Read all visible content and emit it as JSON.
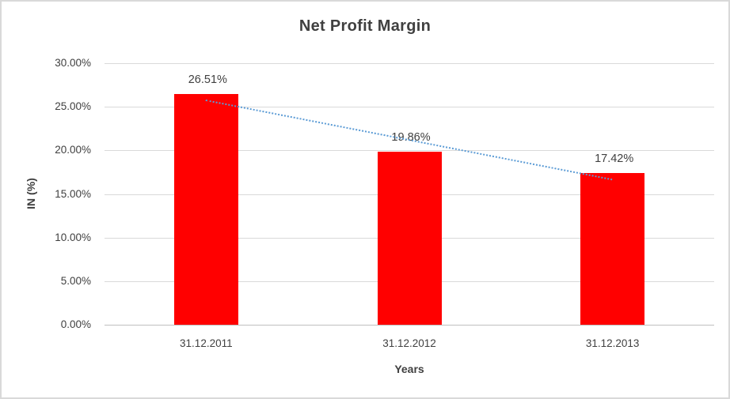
{
  "chart_data": {
    "type": "bar",
    "title": "Net Profit Margin",
    "xlabel": "Years",
    "ylabel": "IN (%)",
    "categories": [
      "31.12.2011",
      "31.12.2012",
      "31.12.2013"
    ],
    "values": [
      26.51,
      19.86,
      17.42
    ],
    "data_labels": [
      "26.51%",
      "19.86%",
      "17.42%"
    ],
    "ylim": [
      0,
      30
    ],
    "ytick_values": [
      0,
      5,
      10,
      15,
      20,
      25,
      30
    ],
    "ytick_labels": [
      "0.00%",
      "5.00%",
      "10.00%",
      "15.00%",
      "20.00%",
      "25.00%",
      "30.00%"
    ],
    "grid": true,
    "legend": "none",
    "trendline": {
      "type": "linear",
      "style": "dotted",
      "color": "#5B9BD5"
    }
  },
  "colors": {
    "bar": "#FF0000",
    "trendline": "#5B9BD5",
    "gridline": "#D9D9D9",
    "axis_line": "#BFBFBF",
    "text": "#404040",
    "chart_border": "#D9D9D9",
    "background": "#FFFFFF"
  }
}
